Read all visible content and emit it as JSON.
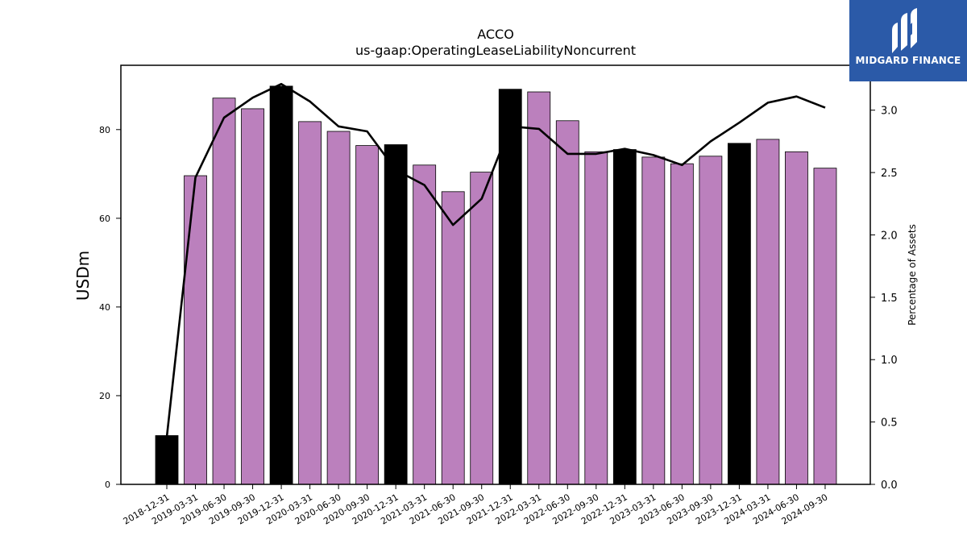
{
  "chart_data": {
    "type": "bar",
    "title": "ACCO",
    "subtitle": "us-gaap:OperatingLeaseLiabilityNoncurrent",
    "ylabel": "USDm",
    "y2label": "Percentage of Assets",
    "categories": [
      "2018-12-31",
      "2019-03-31",
      "2019-06-30",
      "2019-09-30",
      "2019-12-31",
      "2020-03-31",
      "2020-06-30",
      "2020-09-30",
      "2020-12-31",
      "2021-03-31",
      "2021-06-30",
      "2021-09-30",
      "2021-12-31",
      "2022-03-31",
      "2022-06-30",
      "2022-09-30",
      "2022-12-31",
      "2023-03-31",
      "2023-06-30",
      "2023-09-30",
      "2023-12-31",
      "2024-03-31",
      "2024-06-30",
      "2024-09-30"
    ],
    "series": [
      {
        "axis": "left",
        "kind": "bar",
        "values": [
          11.0,
          69.6,
          87.1,
          84.7,
          89.8,
          81.8,
          79.6,
          76.4,
          76.6,
          72.0,
          66.0,
          70.4,
          89.1,
          88.5,
          82.0,
          75.0,
          75.5,
          73.8,
          72.3,
          74.0,
          76.9,
          77.8,
          75.0,
          71.3
        ],
        "highlight_quarter_end": "12-31",
        "colors": {
          "regular": "#bb80bd",
          "year_end": "#000000"
        }
      },
      {
        "axis": "right",
        "kind": "line",
        "values": [
          0.38,
          2.46,
          2.94,
          3.1,
          3.21,
          3.07,
          2.87,
          2.83,
          2.52,
          2.4,
          2.08,
          2.29,
          2.87,
          2.85,
          2.65,
          2.65,
          2.69,
          2.64,
          2.56,
          2.75,
          2.9,
          3.06,
          3.11,
          3.02
        ],
        "color": "#000000"
      }
    ],
    "ylim": [
      0,
      94.5
    ],
    "yticks": [
      0,
      20,
      40,
      60,
      80
    ],
    "y2lim": [
      0,
      3.36
    ],
    "y2ticks": [
      "0.0",
      "0.5",
      "1.0",
      "1.5",
      "2.0",
      "2.5",
      "3.0"
    ],
    "grid": false,
    "legend": "none"
  },
  "logo": {
    "text": "MIDGARD FINANCE"
  }
}
